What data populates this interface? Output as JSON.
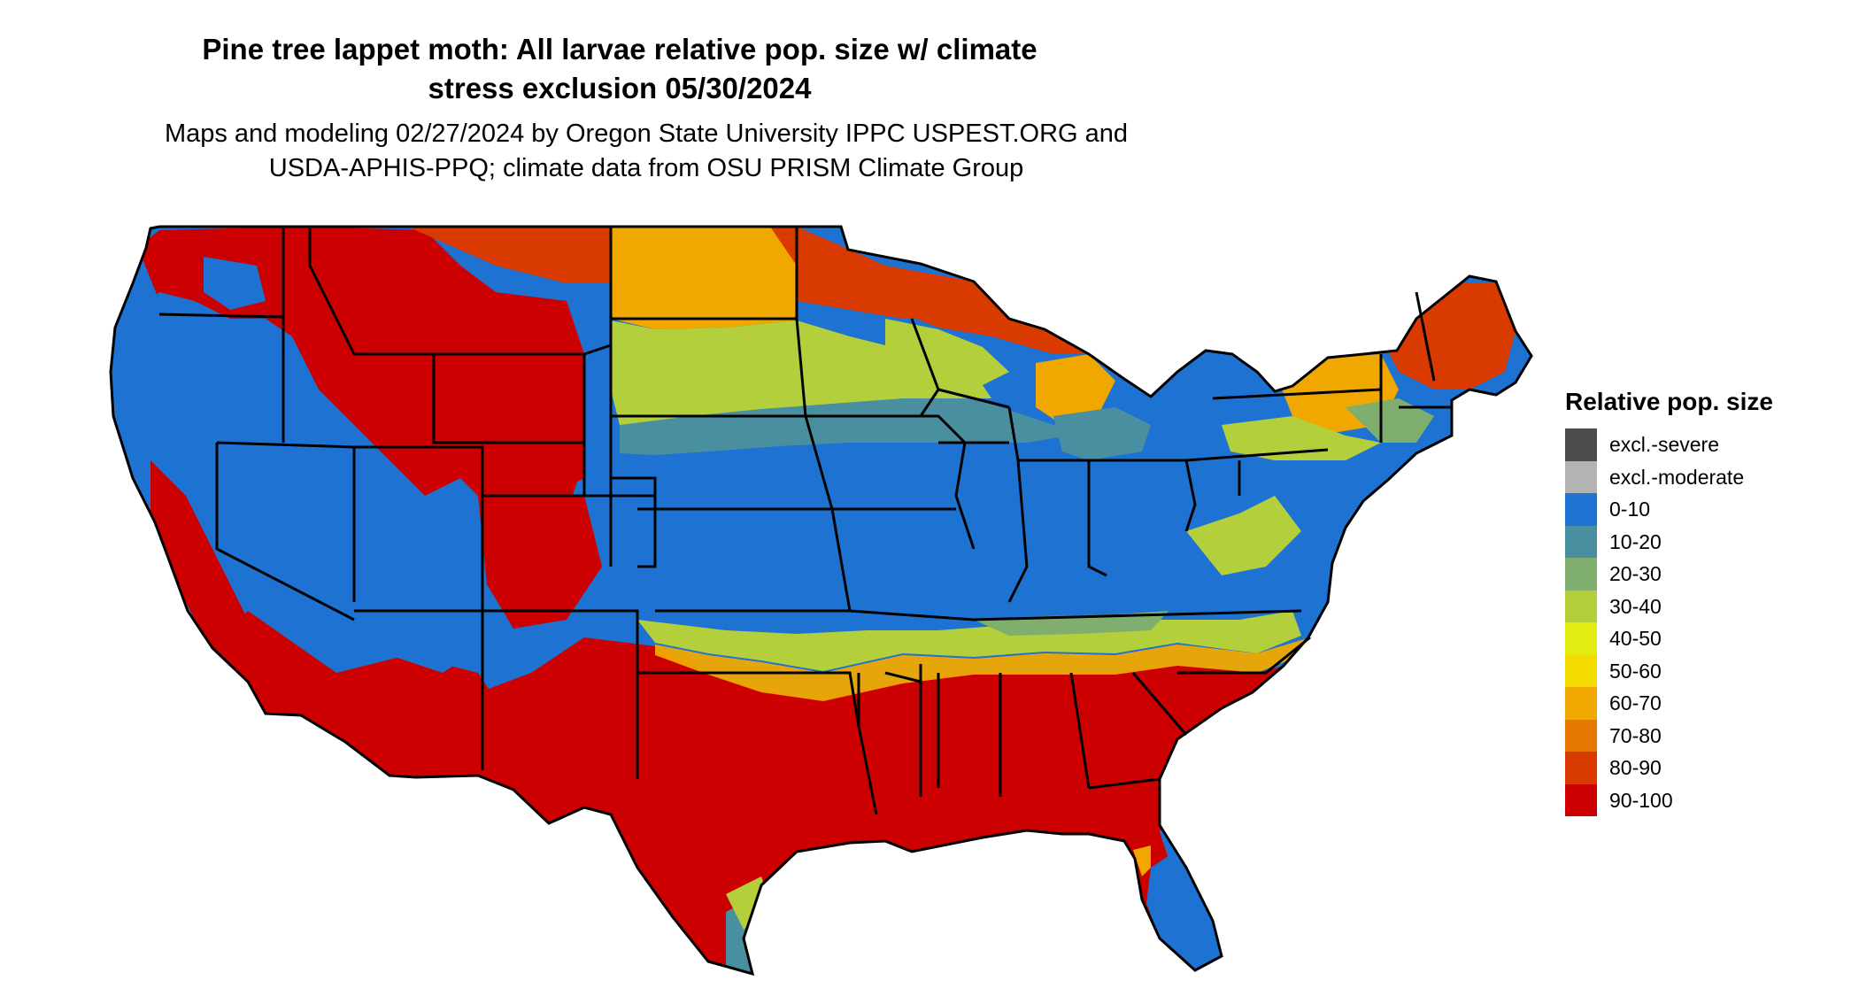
{
  "title_lines": [
    "Pine tree lappet moth: All larvae relative pop. size w/ climate",
    "stress exclusion 05/30/2024"
  ],
  "subtitle_lines": [
    "Maps and modeling 02/27/2024 by Oregon State University IPPC USPEST.ORG and",
    "USDA-APHIS-PPQ; climate data from OSU PRISM Climate Group"
  ],
  "legend": {
    "title": "Relative pop. size",
    "items": [
      {
        "label": "excl.-severe",
        "color": "#4d4d4d"
      },
      {
        "label": "excl.-moderate",
        "color": "#b3b3b3"
      },
      {
        "label": "0-10",
        "color": "#1e73d2"
      },
      {
        "label": "10-20",
        "color": "#4a8fa0"
      },
      {
        "label": "20-30",
        "color": "#7fae6e"
      },
      {
        "label": "30-40",
        "color": "#b4cf3c"
      },
      {
        "label": "40-50",
        "color": "#e3ec12"
      },
      {
        "label": "50-60",
        "color": "#f5dc00"
      },
      {
        "label": "60-70",
        "color": "#f0a800"
      },
      {
        "label": "70-80",
        "color": "#e67800"
      },
      {
        "label": "80-90",
        "color": "#d93a00"
      },
      {
        "label": "90-100",
        "color": "#cc0000"
      }
    ]
  }
}
